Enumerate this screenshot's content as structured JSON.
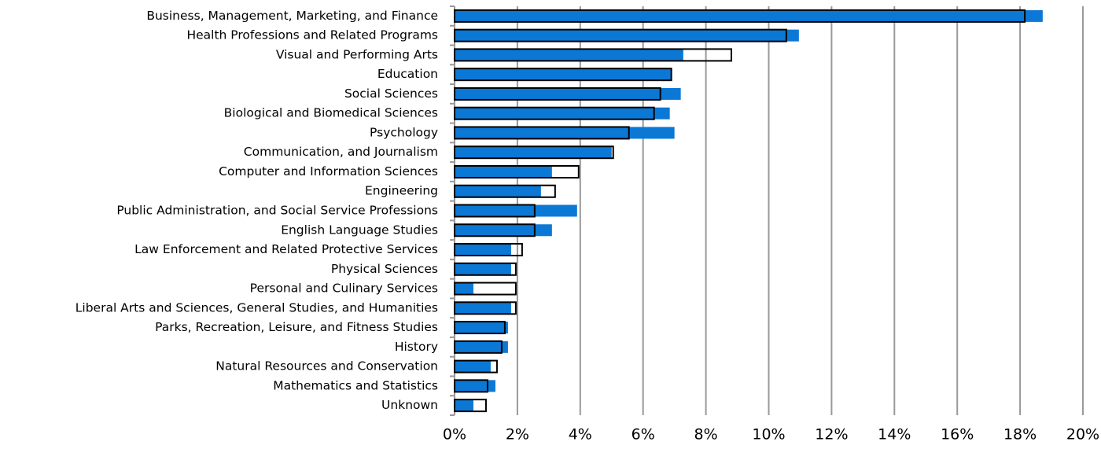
{
  "chart_data": {
    "type": "overlay-barh",
    "categories": [
      "Business, Management, Marketing, and Finance",
      "Health Professions and Related Programs",
      "Visual and Performing Arts",
      "Education",
      "Social Sciences",
      "Biological and Biomedical Sciences",
      "Psychology",
      "Communication, and Journalism",
      "Computer and Information Sciences",
      "Engineering",
      "Public Administration, and Social Service Professions",
      "English Language Studies",
      "Law Enforcement and Related Protective Services",
      "Physical Sciences",
      "Personal and Culinary Services",
      "Liberal Arts and Sciences, General Studies, and Humanities",
      "Parks, Recreation, Leisure, and Fitness Studies",
      "History",
      "Natural Resources and Conservation",
      "Mathematics and Statistics",
      "Unknown"
    ],
    "series": [
      {
        "color": "#0b78d6",
        "outline": false,
        "values": [
          18.72,
          10.96,
          7.28,
          6.9,
          7.2,
          6.85,
          7.0,
          5.0,
          3.1,
          2.75,
          3.9,
          3.1,
          1.8,
          1.8,
          0.6,
          1.8,
          1.7,
          1.7,
          1.15,
          1.3,
          0.6
        ]
      },
      {
        "color": "#000000",
        "outline": true,
        "values": [
          18.15,
          10.56,
          8.81,
          6.9,
          6.55,
          6.35,
          5.55,
          5.05,
          3.95,
          3.2,
          2.55,
          2.55,
          2.15,
          1.95,
          1.95,
          1.95,
          1.6,
          1.5,
          1.35,
          1.05,
          1.0
        ]
      }
    ],
    "xlim": [
      0,
      20
    ],
    "xticks": [
      {
        "value": 0,
        "label": "0%"
      },
      {
        "value": 2,
        "label": "2%"
      },
      {
        "value": 4,
        "label": "4%"
      },
      {
        "value": 6,
        "label": "6%"
      },
      {
        "value": 8,
        "label": "8%"
      },
      {
        "value": 10,
        "label": "10%"
      },
      {
        "value": 12,
        "label": "12%"
      },
      {
        "value": 14,
        "label": "14%"
      },
      {
        "value": 16,
        "label": "16%"
      },
      {
        "value": 18,
        "label": "18%"
      },
      {
        "value": 20,
        "label": "20%"
      }
    ],
    "grid": true
  }
}
